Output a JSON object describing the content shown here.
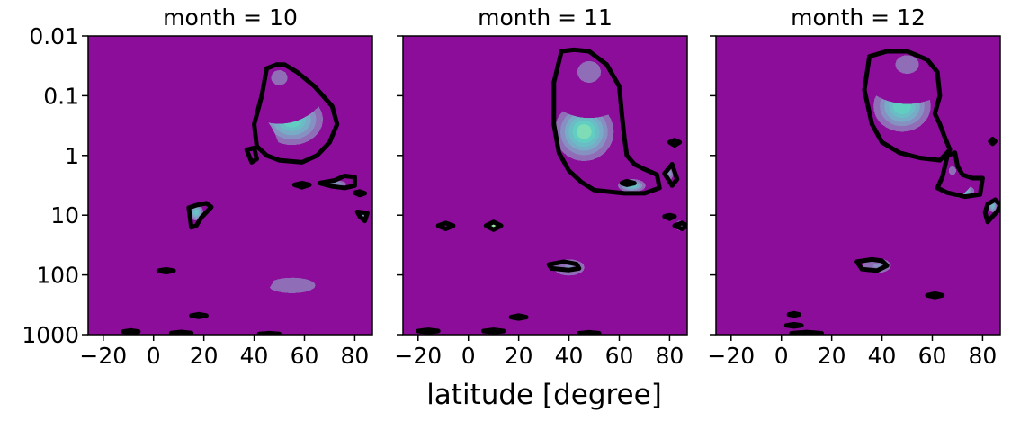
{
  "chart_data": {
    "type": "heatmap",
    "xlabel": "latitude [degree]",
    "ylabel": "",
    "xlim": [
      -26,
      87
    ],
    "ylim": [
      1000,
      0.01
    ],
    "y_scale": "log",
    "x_ticks": [
      -20,
      0,
      20,
      40,
      60,
      80
    ],
    "x_tick_labels": [
      "−20",
      "0",
      "20",
      "40",
      "60",
      "80"
    ],
    "y_ticks": [
      0.01,
      0.1,
      1,
      10,
      100,
      1000
    ],
    "y_tick_labels": [
      "0.01",
      "0.1",
      "1",
      "10",
      "100",
      "1000"
    ],
    "colormap": [
      "#440154",
      "#482878",
      "#3e4989",
      "#31688e",
      "#26828e",
      "#1f9e89",
      "#35b779",
      "#6ece58",
      "#b5de2b",
      "#fde725"
    ],
    "background_color": "#440154",
    "contour_color": "#000000",
    "panels": [
      {
        "title": "month = 10",
        "blobs": [
          {
            "lat": 55,
            "p": 0.25,
            "slat": 13,
            "sdec": 0.45,
            "amp": 0.8
          },
          {
            "lat": 50,
            "p": 0.05,
            "slat": 9,
            "sdec": 0.35,
            "amp": 0.4
          },
          {
            "lat": 55,
            "p": 150,
            "slat": 18,
            "sdec": 0.25,
            "amp": 0.45
          },
          {
            "lat": 40,
            "p": 7,
            "slat": 6,
            "sdec": 0.7,
            "amp": 0.3
          },
          {
            "lat": 17,
            "p": 9,
            "slat": 3,
            "sdec": 0.15,
            "amp": 0.75
          },
          {
            "lat": 72,
            "p": 3,
            "slat": 6,
            "sdec": 0.08,
            "amp": 0.6
          },
          {
            "lat": 83,
            "p": 10,
            "slat": 2,
            "sdec": 0.1,
            "amp": 0.6
          }
        ],
        "contours": [
          {
            "lat": [
              45,
              49,
              52,
              57,
              64,
              71,
              73,
              70,
              65,
              59,
              50,
              45,
              41,
              40,
              43,
              45
            ],
            "p": [
              0.035,
              0.03,
              0.03,
              0.04,
              0.07,
              0.15,
              0.3,
              0.6,
              1.0,
              1.3,
              1.2,
              1.0,
              0.7,
              0.3,
              0.1,
              0.035
            ]
          },
          {
            "lat": [
              66,
              72,
              76,
              80,
              80,
              76,
              71,
              66
            ],
            "p": [
              2.9,
              2.6,
              2.2,
              2.3,
              3.2,
              3.5,
              3.3,
              2.9
            ]
          },
          {
            "lat": [
              14,
              17,
              21,
              23,
              19,
              17,
              15,
              14
            ],
            "p": [
              7.5,
              6.8,
              6.3,
              7.3,
              11,
              15,
              16,
              7.5
            ]
          },
          {
            "lat": [
              37,
              40,
              41,
              39,
              37
            ],
            "p": [
              0.8,
              0.75,
              1.15,
              1.3,
              0.8
            ]
          },
          {
            "lat": [
              56,
              59,
              62,
              59,
              56
            ],
            "p": [
              3.1,
              2.9,
              3.1,
              3.4,
              3.1
            ]
          },
          {
            "lat": [
              81,
              85,
              84,
              82,
              81
            ],
            "p": [
              8.8,
              9.2,
              12.5,
              10.5,
              8.8
            ]
          },
          {
            "lat": [
              80,
              82,
              84,
              82,
              80
            ],
            "p": [
              4.2,
              4.0,
              4.3,
              4.6,
              4.2
            ]
          },
          {
            "lat": [
              2,
              5,
              8,
              5,
              2
            ],
            "p": [
              85,
              81,
              85,
              90,
              85
            ]
          },
          {
            "lat": [
              15,
              18,
              21,
              18,
              15
            ],
            "p": [
              480,
              455,
              480,
              505,
              480
            ]
          },
          {
            "lat": [
              -12,
              -9,
              -6,
              -9,
              -12
            ],
            "p": [
              890,
              850,
              890,
              930,
              890
            ]
          },
          {
            "lat": [
              7,
              11,
              15,
              11,
              7
            ],
            "p": [
              940,
              900,
              940,
              980,
              940
            ]
          },
          {
            "lat": [
              42,
              46,
              50,
              46,
              42
            ],
            "p": [
              975,
              945,
              975,
              1000,
              975
            ]
          }
        ]
      },
      {
        "title": "month = 11",
        "blobs": [
          {
            "lat": 46,
            "p": 0.4,
            "slat": 12,
            "sdec": 0.5,
            "amp": 0.85
          },
          {
            "lat": 48,
            "p": 0.04,
            "slat": 9,
            "sdec": 0.35,
            "amp": 0.45
          },
          {
            "lat": 65,
            "p": 3.2,
            "slat": 6,
            "sdec": 0.12,
            "amp": 0.75
          },
          {
            "lat": 40,
            "p": 75,
            "slat": 10,
            "sdec": 0.22,
            "amp": 0.5
          },
          {
            "lat": 10,
            "p": 15,
            "slat": 2,
            "sdec": 0.08,
            "amp": 0.9
          },
          {
            "lat": 80,
            "p": 2,
            "slat": 2,
            "sdec": 0.15,
            "amp": 0.55
          },
          {
            "lat": 84,
            "p": 15,
            "slat": 2,
            "sdec": 0.1,
            "amp": 0.65
          }
        ],
        "contours": [
          {
            "lat": [
              37,
              42,
              48,
              55,
              60,
              61,
              62,
              63,
              66,
              70,
              75,
              76,
              70,
              62,
              50,
              45,
              40,
              36,
              34,
              34,
              37
            ],
            "p": [
              0.018,
              0.017,
              0.018,
              0.03,
              0.07,
              0.2,
              0.5,
              1.0,
              1.4,
              1.7,
              2.1,
              3.5,
              4.3,
              4.3,
              3.8,
              2.8,
              1.8,
              0.9,
              0.3,
              0.06,
              0.018
            ]
          },
          {
            "lat": [
              78,
              81,
              83,
              81,
              78
            ],
            "p": [
              2.0,
              1.4,
              2.5,
              3.2,
              2.0
            ]
          },
          {
            "lat": [
              7,
              10,
              13,
              10,
              7
            ],
            "p": [
              15,
              13,
              15,
              17.5,
              15
            ]
          },
          {
            "lat": [
              82,
              85,
              87,
              85,
              82
            ],
            "p": [
              15,
              13.5,
              15,
              17,
              15
            ]
          },
          {
            "lat": [
              32,
              38,
              43,
              44,
              40,
              33,
              32
            ],
            "p": [
              67,
              60,
              66,
              78,
              83,
              78,
              67
            ]
          },
          {
            "lat": [
              -12,
              -9,
              -6,
              -9,
              -12
            ],
            "p": [
              15,
              13.5,
              15,
              17,
              15
            ]
          },
          {
            "lat": [
              61,
              63,
              66,
              63,
              61
            ],
            "p": [
              2.9,
              2.7,
              2.9,
              3.1,
              2.9
            ]
          },
          {
            "lat": [
              78,
              80,
              82,
              80,
              78
            ],
            "p": [
              10.5,
              10,
              10.5,
              11.5,
              10.5
            ]
          },
          {
            "lat": [
              80,
              82,
              84,
              82,
              80
            ],
            "p": [
              0.6,
              0.55,
              0.6,
              0.68,
              0.6
            ]
          },
          {
            "lat": [
              17,
              20,
              23,
              20,
              17
            ],
            "p": [
              510,
              480,
              510,
              540,
              510
            ]
          },
          {
            "lat": [
              -20,
              -16,
              -12,
              -16,
              -20
            ],
            "p": [
              870,
              830,
              870,
              910,
              870
            ]
          },
          {
            "lat": [
              6,
              10,
              14,
              10,
              6
            ],
            "p": [
              870,
              830,
              870,
              910,
              870
            ]
          },
          {
            "lat": [
              44,
              48,
              52,
              48,
              44
            ],
            "p": [
              950,
              910,
              950,
              990,
              950
            ]
          }
        ]
      },
      {
        "title": "month = 12",
        "blobs": [
          {
            "lat": 48,
            "p": 0.15,
            "slat": 12,
            "sdec": 0.45,
            "amp": 0.8
          },
          {
            "lat": 50,
            "p": 0.03,
            "slat": 9,
            "sdec": 0.3,
            "amp": 0.45
          },
          {
            "lat": 72,
            "p": 4,
            "slat": 5,
            "sdec": 0.12,
            "amp": 0.8
          },
          {
            "lat": 38,
            "p": 70,
            "slat": 9,
            "sdec": 0.2,
            "amp": 0.5
          },
          {
            "lat": 84,
            "p": 7,
            "slat": 2,
            "sdec": 0.12,
            "amp": 0.7
          },
          {
            "lat": 68,
            "p": 1.8,
            "slat": 4,
            "sdec": 0.2,
            "amp": 0.4
          }
        ],
        "contours": [
          {
            "lat": [
              35,
              42,
              50,
              58,
              62,
              63,
              61,
              63,
              65,
              67,
              63,
              55,
              47,
              40,
              36,
              33,
              35
            ],
            "p": [
              0.022,
              0.018,
              0.018,
              0.025,
              0.04,
              0.1,
              0.2,
              0.3,
              0.5,
              0.8,
              1.2,
              1.1,
              0.9,
              0.6,
              0.3,
              0.08,
              0.022
            ]
          },
          {
            "lat": [
              66,
              69,
              70,
              72,
              76,
              80,
              79,
              73,
              66,
              62,
              64,
              66
            ],
            "p": [
              1.0,
              0.9,
              1.5,
              2.1,
              2.4,
              2.4,
              4.5,
              4.9,
              4.2,
              3.5,
              2.3,
              1.0
            ]
          },
          {
            "lat": [
              82,
              85,
              87,
              86,
              84,
              82,
              81,
              82
            ],
            "p": [
              6.5,
              5.5,
              6.7,
              8.5,
              10.5,
              13,
              9,
              6.5
            ]
          },
          {
            "lat": [
              30,
              36,
              40,
              42,
              38,
              32,
              30
            ],
            "p": [
              60,
              55,
              58,
              70,
              85,
              80,
              60
            ]
          },
          {
            "lat": [
              83,
              84,
              85,
              84,
              83
            ],
            "p": [
              0.58,
              0.53,
              0.58,
              0.64,
              0.58
            ]
          },
          {
            "lat": [
              58,
              61,
              64,
              61,
              58
            ],
            "p": [
              220,
              205,
              220,
              235,
              220
            ]
          },
          {
            "lat": [
              3,
              5,
              7,
              5,
              3
            ],
            "p": [
              460,
              440,
              460,
              480,
              460
            ]
          },
          {
            "lat": [
              2,
              5,
              8,
              5,
              2
            ],
            "p": [
              700,
              670,
              700,
              730,
              700
            ]
          },
          {
            "lat": [
              4,
              10,
              16,
              10,
              4
            ],
            "p": [
              950,
              905,
              950,
              995,
              950
            ]
          }
        ]
      }
    ]
  }
}
